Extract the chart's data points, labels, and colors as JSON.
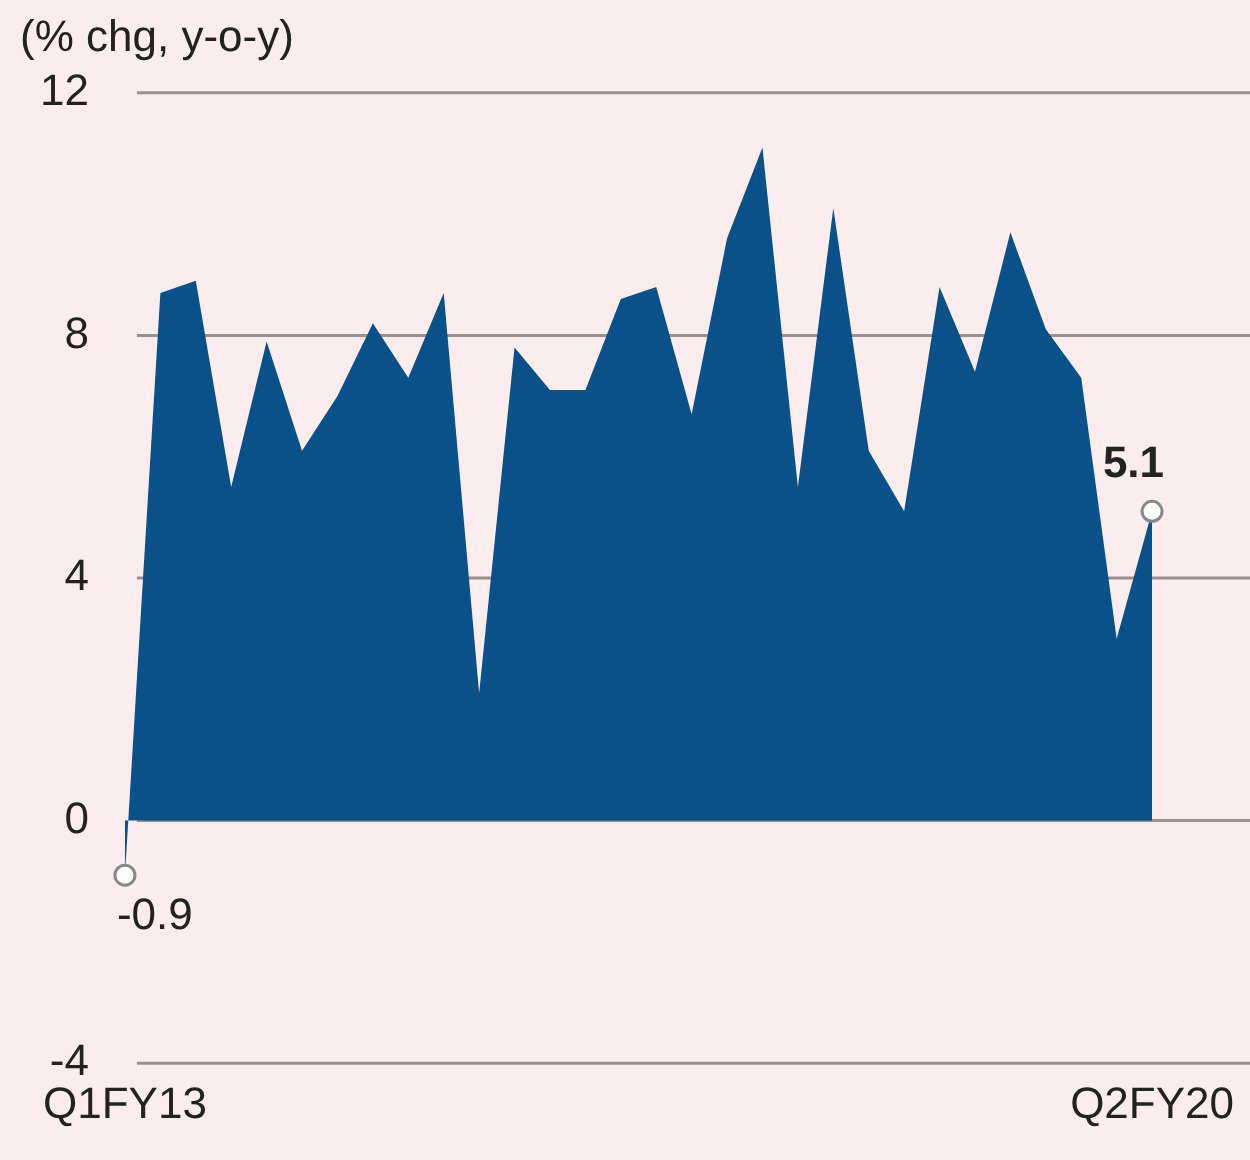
{
  "chart_data": {
    "type": "area",
    "title": "(% chg, y-o-y)",
    "categories": [
      "Q1FY13",
      null,
      null,
      null,
      null,
      null,
      null,
      null,
      null,
      null,
      null,
      null,
      null,
      null,
      null,
      null,
      null,
      null,
      null,
      null,
      null,
      null,
      null,
      null,
      null,
      null,
      null,
      null,
      null,
      "Q2FY20"
    ],
    "values": [
      -0.9,
      8.7,
      8.9,
      5.5,
      7.9,
      6.1,
      7.0,
      8.2,
      7.3,
      8.7,
      2.1,
      7.8,
      7.1,
      7.1,
      8.6,
      8.8,
      6.7,
      9.6,
      11.1,
      5.5,
      10.1,
      6.1,
      5.1,
      8.8,
      7.4,
      9.7,
      8.1,
      7.3,
      3.0,
      5.1
    ],
    "value_labels": [
      "-0.9",
      null,
      null,
      null,
      null,
      null,
      null,
      null,
      null,
      null,
      null,
      null,
      null,
      null,
      null,
      null,
      null,
      null,
      null,
      null,
      null,
      null,
      null,
      null,
      null,
      null,
      null,
      null,
      null,
      "5.1"
    ],
    "color": "#0b5189",
    "ylim": [
      -4,
      12
    ],
    "yticks": [
      -4,
      0,
      4,
      8,
      12
    ],
    "grid": "y"
  }
}
